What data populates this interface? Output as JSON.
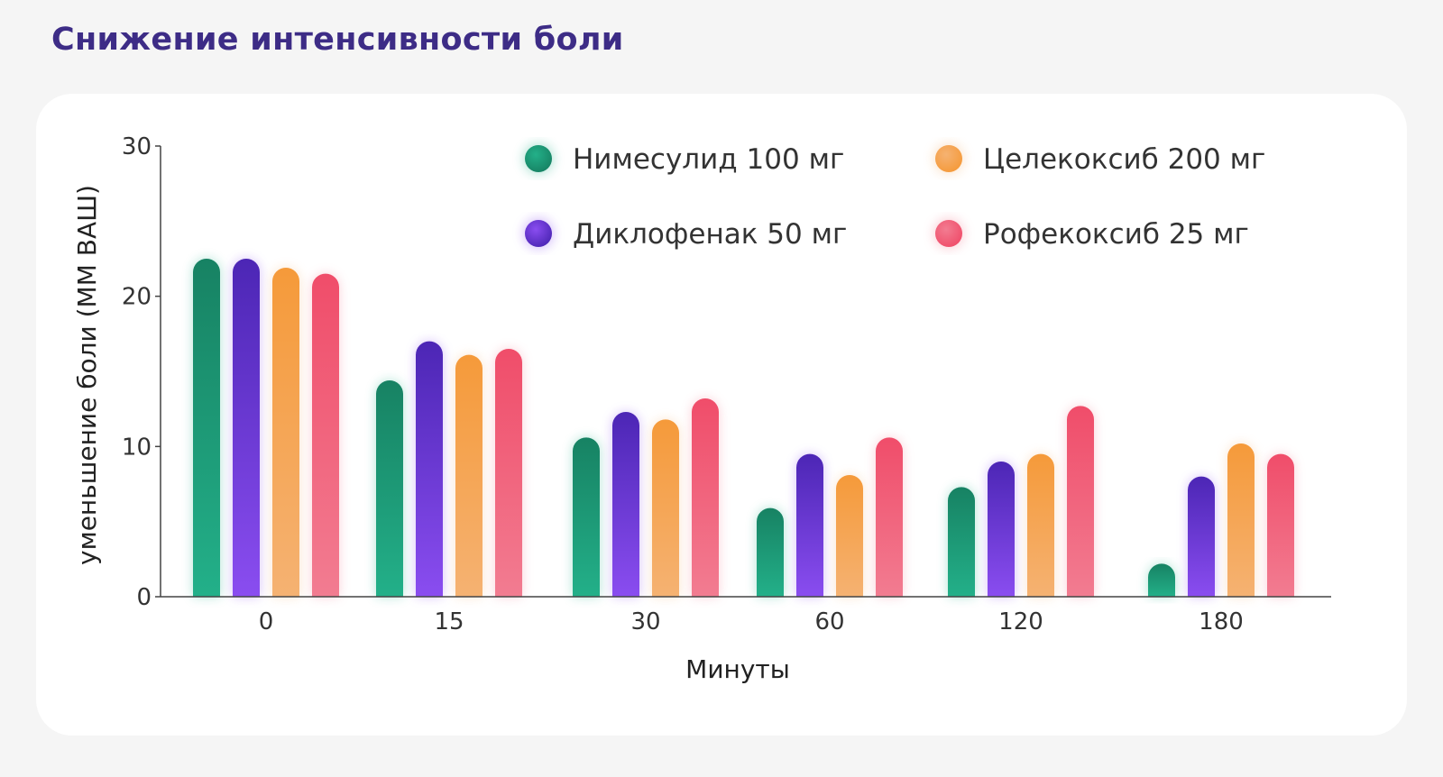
{
  "page": {
    "title": "Снижение интенсивности боли"
  },
  "colors": {
    "Нимесулид 100 мг": {
      "dark": "#178263",
      "light": "#23b089"
    },
    "Диклофенак 50 мг": {
      "dark": "#4c26b5",
      "light": "#8a4df0"
    },
    "Целекоксиб 200 мг": {
      "dark": "#f59a3a",
      "light": "#f5b272"
    },
    "Рофекоксиб 25 мг": {
      "dark": "#f04d6a",
      "light": "#f27c91"
    }
  },
  "chart_data": {
    "type": "bar",
    "title": "Снижение интенсивности боли",
    "xlabel": "Минуты",
    "ylabel": "уменьшение боли (ММ ВАШ)",
    "categories": [
      "0",
      "15",
      "30",
      "60",
      "120",
      "180"
    ],
    "ylim": [
      0,
      30
    ],
    "yticks": [
      0,
      10,
      20,
      30
    ],
    "legend_position": "top-right",
    "grid": false,
    "series": [
      {
        "name": "Нимесулид 100 мг",
        "values": [
          22.5,
          14.4,
          10.6,
          5.9,
          7.3,
          2.2
        ]
      },
      {
        "name": "Диклофенак 50 мг",
        "values": [
          22.5,
          17.0,
          12.3,
          9.5,
          9.0,
          8.0
        ]
      },
      {
        "name": "Целекоксиб 200 мг",
        "values": [
          21.9,
          16.1,
          11.8,
          8.1,
          9.5,
          10.2
        ]
      },
      {
        "name": "Рофекоксиб 25 мг",
        "values": [
          21.5,
          16.5,
          13.2,
          10.6,
          12.7,
          9.5
        ]
      }
    ]
  }
}
